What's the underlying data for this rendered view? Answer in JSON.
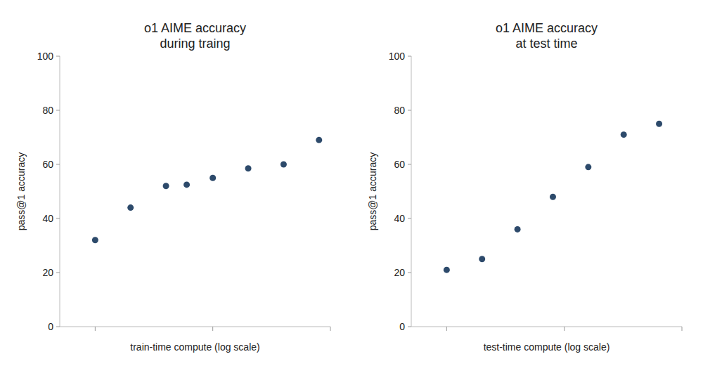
{
  "chart_data": [
    {
      "type": "scatter",
      "title": "o1 AIME accuracy\nduring traing",
      "xlabel": "train-time compute (log scale)",
      "ylabel": "pass@1 accuracy",
      "x": [
        1,
        2,
        4,
        6,
        10,
        20,
        40,
        80
      ],
      "values": [
        32,
        44,
        52,
        52.5,
        55,
        58.5,
        60,
        69
      ],
      "color": "#2d4a6b",
      "log": "x",
      "xlim": [
        0.5,
        100
      ],
      "xticks": [
        1,
        10,
        100
      ],
      "ylim": [
        0,
        100
      ],
      "yticks": [
        0,
        20,
        40,
        60,
        80,
        100
      ],
      "grid": false,
      "tick_labels": "y"
    },
    {
      "type": "scatter",
      "title": "o1 AIME accuracy\nat test time",
      "xlabel": "test-time compute (log scale)",
      "ylabel": "pass@1 accuracy",
      "x": [
        1,
        2,
        4,
        8,
        16,
        32,
        64
      ],
      "values": [
        21,
        25,
        36,
        48,
        59,
        71,
        75
      ],
      "color": "#2d4a6b",
      "log": "x",
      "xlim": [
        0.5,
        100
      ],
      "xticks": [
        1,
        10,
        100
      ],
      "ylim": [
        0,
        100
      ],
      "yticks": [
        0,
        20,
        40,
        60,
        80,
        100
      ],
      "grid": false,
      "tick_labels": "y"
    }
  ]
}
